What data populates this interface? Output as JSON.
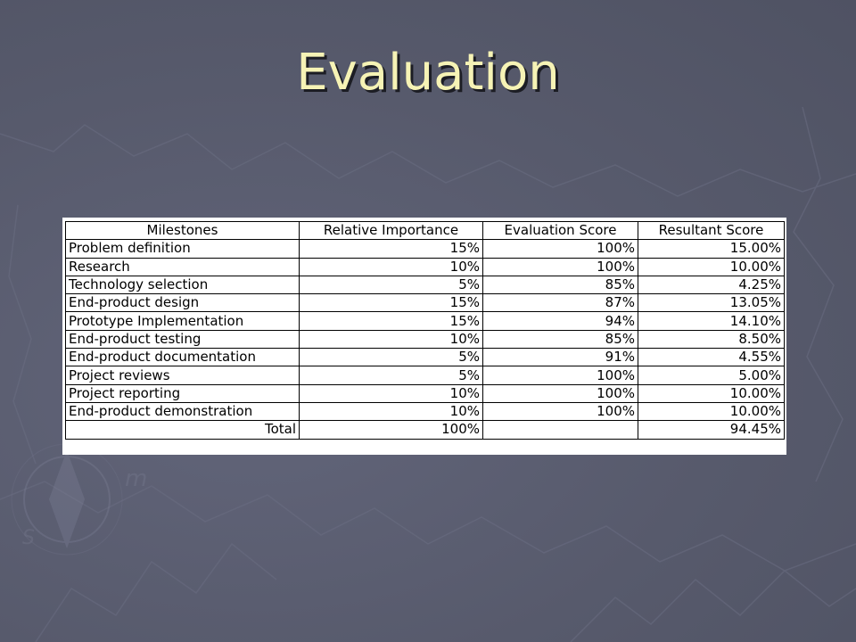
{
  "slide": {
    "title": "Evaluation"
  },
  "table": {
    "headers": [
      "Milestones",
      "Relative Importance",
      "Evaluation Score",
      "Resultant Score"
    ],
    "rows": [
      {
        "milestone": "Problem definition",
        "importance": "15%",
        "evaluation": "100%",
        "resultant": "15.00%"
      },
      {
        "milestone": "Research",
        "importance": "10%",
        "evaluation": "100%",
        "resultant": "10.00%"
      },
      {
        "milestone": "Technology selection",
        "importance": "5%",
        "evaluation": "85%",
        "resultant": "4.25%"
      },
      {
        "milestone": "End-product design",
        "importance": "15%",
        "evaluation": "87%",
        "resultant": "13.05%"
      },
      {
        "milestone": "Prototype Implementation",
        "importance": "15%",
        "evaluation": "94%",
        "resultant": "14.10%"
      },
      {
        "milestone": "End-product testing",
        "importance": "10%",
        "evaluation": "85%",
        "resultant": "8.50%"
      },
      {
        "milestone": "End-product documentation",
        "importance": "5%",
        "evaluation": "91%",
        "resultant": "4.55%"
      },
      {
        "milestone": "Project reviews",
        "importance": "5%",
        "evaluation": "100%",
        "resultant": "5.00%"
      },
      {
        "milestone": "Project reporting",
        "importance": "10%",
        "evaluation": "100%",
        "resultant": "10.00%"
      },
      {
        "milestone": "End-product demonstration",
        "importance": "10%",
        "evaluation": "100%",
        "resultant": "10.00%"
      }
    ],
    "total": {
      "label": "Total",
      "importance": "100%",
      "evaluation": "",
      "resultant": "94.45%"
    }
  },
  "colors": {
    "background": "#5b5e70",
    "title": "#f6f3b5",
    "title_shadow": "#1c1d24",
    "table_background": "#ffffff",
    "table_border": "#000000"
  }
}
